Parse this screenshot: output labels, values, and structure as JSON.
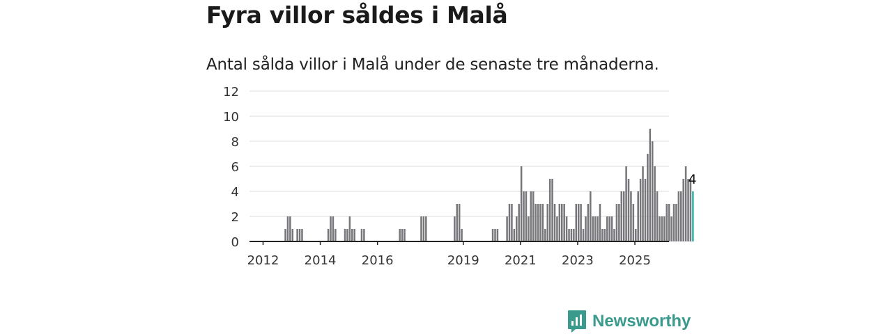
{
  "title": "Fyra villor såldes i Malå",
  "subtitle": "Antal sålda villor i Malå under de senaste tre månaderna.",
  "brand": {
    "name": "Newsworthy"
  },
  "colors": {
    "bar": "#77767b",
    "highlight": "#2bb3a8",
    "grid": "#dddddd",
    "axis": "#222222",
    "brand": "#3a9a8c"
  },
  "chart_data": {
    "type": "bar",
    "title": "",
    "xlabel": "",
    "ylabel": "",
    "ylim": [
      0,
      12
    ],
    "yticks": [
      "0",
      "2",
      "4",
      "6",
      "8",
      "10",
      "12"
    ],
    "xticks": [
      {
        "label": "2012",
        "year": 2012
      },
      {
        "label": "2014",
        "year": 2014
      },
      {
        "label": "2016",
        "year": 2016
      },
      {
        "label": "2019",
        "year": 2019
      },
      {
        "label": "2021",
        "year": 2021
      },
      {
        "label": "2023",
        "year": 2023
      },
      {
        "label": "2025",
        "year": 2025
      }
    ],
    "start_month": "2011-08",
    "series": [
      {
        "values": [
          0,
          0,
          0,
          0,
          0,
          0,
          0,
          0,
          0,
          0,
          0,
          0,
          0,
          0,
          1,
          2,
          2,
          1,
          0,
          1,
          1,
          1,
          0,
          0,
          0,
          0,
          0,
          0,
          0,
          0,
          0,
          0,
          1,
          2,
          2,
          1,
          0,
          0,
          0,
          1,
          1,
          2,
          1,
          1,
          0,
          0,
          1,
          1,
          0,
          0,
          0,
          0,
          0,
          0,
          0,
          0,
          0,
          0,
          0,
          0,
          0,
          0,
          1,
          1,
          1,
          0,
          0,
          0,
          0,
          0,
          0,
          2,
          2,
          2,
          0,
          0,
          0,
          0,
          0,
          0,
          0,
          0,
          0,
          0,
          0,
          2,
          3,
          3,
          1,
          0,
          0,
          0,
          0,
          0,
          0,
          0,
          0,
          0,
          0,
          0,
          0,
          1,
          1,
          1,
          0,
          0,
          0,
          2,
          3,
          3,
          1,
          2,
          3,
          6,
          4,
          4,
          2,
          4,
          4,
          3,
          3,
          3,
          3,
          1,
          3,
          5,
          5,
          3,
          2,
          3,
          3,
          3,
          2,
          1,
          1,
          1,
          3,
          3,
          3,
          1,
          2,
          3,
          4,
          2,
          2,
          2,
          3,
          1,
          1,
          2,
          2,
          2,
          1,
          3,
          3,
          4,
          4,
          6,
          5,
          4,
          3,
          1,
          4,
          5,
          6,
          5,
          7,
          9,
          8,
          6,
          4,
          2,
          2,
          2,
          3,
          3,
          2,
          3,
          3,
          4,
          4,
          5,
          6,
          5,
          5,
          4
        ]
      }
    ],
    "highlight": {
      "value": 4,
      "label": "4"
    }
  }
}
